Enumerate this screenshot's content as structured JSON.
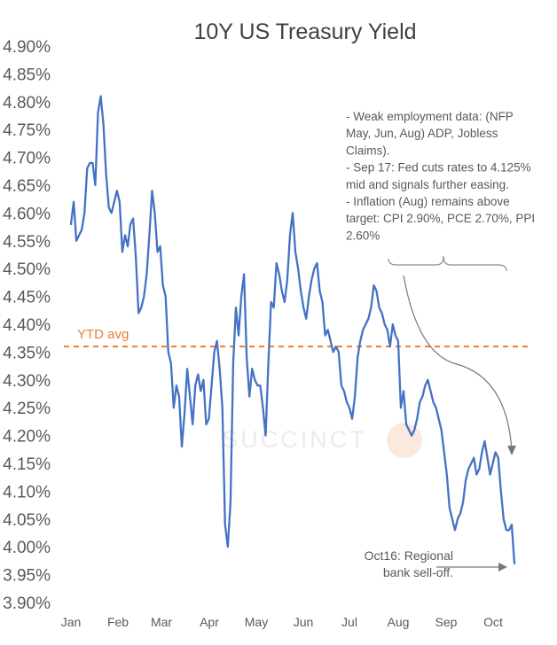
{
  "chart_data": {
    "type": "line",
    "title": "10Y US Treasury Yield",
    "xlabel": "",
    "ylabel": "",
    "ylim": [
      3.9,
      4.9
    ],
    "y_ticks": [
      "4.90%",
      "4.85%",
      "4.80%",
      "4.75%",
      "4.70%",
      "4.65%",
      "4.60%",
      "4.55%",
      "4.50%",
      "4.45%",
      "4.40%",
      "4.35%",
      "4.30%",
      "4.25%",
      "4.20%",
      "4.15%",
      "4.10%",
      "4.05%",
      "4.00%",
      "3.95%",
      "3.90%"
    ],
    "x_tick_labels": [
      "Jan",
      "Feb",
      "Mar",
      "Apr",
      "May",
      "Jun",
      "Jul",
      "Aug",
      "Sep",
      "Oct"
    ],
    "grid": false,
    "legend": "none",
    "colors": {
      "series": "#4472c4",
      "ytd_avg": "#ed7d31",
      "annotation": "#666666",
      "text": "#595959"
    },
    "series": [
      {
        "values": [
          4.58,
          4.62,
          4.55,
          4.56,
          4.57,
          4.6,
          4.68,
          4.69,
          4.69,
          4.65,
          4.78,
          4.81,
          4.76,
          4.67,
          4.61,
          4.6,
          4.62,
          4.64,
          4.62,
          4.53,
          4.56,
          4.54,
          4.58,
          4.59,
          4.52,
          4.42,
          4.43,
          4.45,
          4.49,
          4.56,
          4.64,
          4.6,
          4.53,
          4.54,
          4.47,
          4.45,
          4.35,
          4.33,
          4.25,
          4.29,
          4.27,
          4.18,
          4.24,
          4.32,
          4.27,
          4.22,
          4.29,
          4.31,
          4.28,
          4.3,
          4.22,
          4.23,
          4.29,
          4.35,
          4.37,
          4.32,
          4.25,
          4.04,
          4.0,
          4.08,
          4.33,
          4.43,
          4.38,
          4.45,
          4.49,
          4.34,
          4.27,
          4.32,
          4.3,
          4.29,
          4.29,
          4.25,
          4.2,
          4.33,
          4.44,
          4.43,
          4.51,
          4.49,
          4.46,
          4.44,
          4.48,
          4.56,
          4.6,
          4.53,
          4.5,
          4.46,
          4.43,
          4.41,
          4.45,
          4.48,
          4.5,
          4.51,
          4.46,
          4.44,
          4.38,
          4.39,
          4.37,
          4.35,
          4.36,
          4.35,
          4.29,
          4.28,
          4.26,
          4.25,
          4.23,
          4.27,
          4.34,
          4.37,
          4.39,
          4.4,
          4.41,
          4.43,
          4.47,
          4.46,
          4.43,
          4.42,
          4.4,
          4.39,
          4.36,
          4.4,
          4.38,
          4.37,
          4.25,
          4.28,
          4.22,
          4.21,
          4.2,
          4.21,
          4.23,
          4.26,
          4.27,
          4.29,
          4.3,
          4.28,
          4.26,
          4.25,
          4.23,
          4.21,
          4.17,
          4.13,
          4.07,
          4.05,
          4.03,
          4.05,
          4.06,
          4.08,
          4.12,
          4.14,
          4.15,
          4.16,
          4.13,
          4.14,
          4.17,
          4.19,
          4.16,
          4.13,
          4.15,
          4.17,
          4.16,
          4.1,
          4.05,
          4.03,
          4.03,
          4.04,
          3.97
        ]
      }
    ],
    "ytd_avg": {
      "value": 4.36,
      "label": "YTD avg"
    },
    "annotations": {
      "macro_note": [
        "- Weak employment data: (NFP",
        "May, Jun, Aug) ADP, Jobless",
        "Claims).",
        "- Sep 17: Fed cuts rates to 4.125%",
        "mid and signals further easing.",
        "- Inflation (Aug) remains above",
        "target: CPI 2.90%, PCE 2.70%, PPI",
        "2.60%"
      ],
      "selloff_note": [
        "Oct16: Regional",
        "bank sell-off."
      ]
    },
    "watermark": "SUCCINCT"
  }
}
